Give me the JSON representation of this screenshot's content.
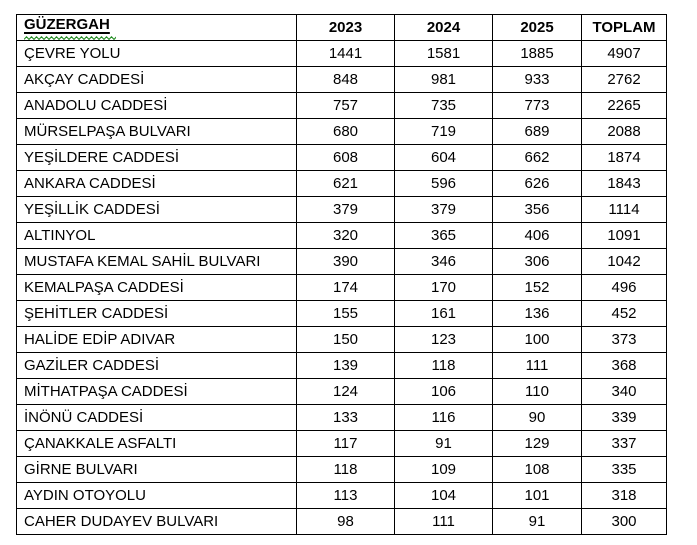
{
  "colors": {
    "border": "#000000",
    "text": "#000000",
    "background": "#ffffff",
    "spellcheck_squiggle_green": "#1f8a1f"
  },
  "table": {
    "columns": [
      "GÜZERGAH",
      "2023",
      "2024",
      "2025",
      "TOPLAM"
    ],
    "rows": [
      {
        "route": "ÇEVRE YOLU",
        "y2023": 1441,
        "y2024": 1581,
        "y2025": 1885,
        "total": 4907
      },
      {
        "route": "AKÇAY CADDESİ",
        "y2023": 848,
        "y2024": 981,
        "y2025": 933,
        "total": 2762
      },
      {
        "route": "ANADOLU CADDESİ",
        "y2023": 757,
        "y2024": 735,
        "y2025": 773,
        "total": 2265
      },
      {
        "route": "MÜRSELPAŞA BULVARI",
        "y2023": 680,
        "y2024": 719,
        "y2025": 689,
        "total": 2088
      },
      {
        "route": "YEŞİLDERE CADDESİ",
        "y2023": 608,
        "y2024": 604,
        "y2025": 662,
        "total": 1874
      },
      {
        "route": "ANKARA CADDESİ",
        "y2023": 621,
        "y2024": 596,
        "y2025": 626,
        "total": 1843
      },
      {
        "route": "YEŞİLLİK CADDESİ",
        "y2023": 379,
        "y2024": 379,
        "y2025": 356,
        "total": 1114
      },
      {
        "route": "ALTINYOL",
        "y2023": 320,
        "y2024": 365,
        "y2025": 406,
        "total": 1091
      },
      {
        "route": "MUSTAFA KEMAL SAHİL BULVARI",
        "y2023": 390,
        "y2024": 346,
        "y2025": 306,
        "total": 1042
      },
      {
        "route": "KEMALPAŞA CADDESİ",
        "y2023": 174,
        "y2024": 170,
        "y2025": 152,
        "total": 496
      },
      {
        "route": "ŞEHİTLER CADDESİ",
        "y2023": 155,
        "y2024": 161,
        "y2025": 136,
        "total": 452
      },
      {
        "route": "HALİDE EDİP ADIVAR",
        "y2023": 150,
        "y2024": 123,
        "y2025": 100,
        "total": 373
      },
      {
        "route": "GAZİLER CADDESİ",
        "y2023": 139,
        "y2024": 118,
        "y2025": 111,
        "total": 368
      },
      {
        "route": "MİTHATPAŞA CADDESİ",
        "y2023": 124,
        "y2024": 106,
        "y2025": 110,
        "total": 340
      },
      {
        "route": "İNÖNÜ CADDESİ",
        "y2023": 133,
        "y2024": 116,
        "y2025": 90,
        "total": 339
      },
      {
        "route": "ÇANAKKALE ASFALTI",
        "y2023": 117,
        "y2024": 91,
        "y2025": 129,
        "total": 337
      },
      {
        "route": "GİRNE BULVARI",
        "y2023": 118,
        "y2024": 109,
        "y2025": 108,
        "total": 335
      },
      {
        "route": "AYDIN OTOYOLU",
        "y2023": 113,
        "y2024": 104,
        "y2025": 101,
        "total": 318
      },
      {
        "route": "CAHER DUDAYEV BULVARI",
        "y2023": 98,
        "y2024": 111,
        "y2025": 91,
        "total": 300
      }
    ]
  }
}
